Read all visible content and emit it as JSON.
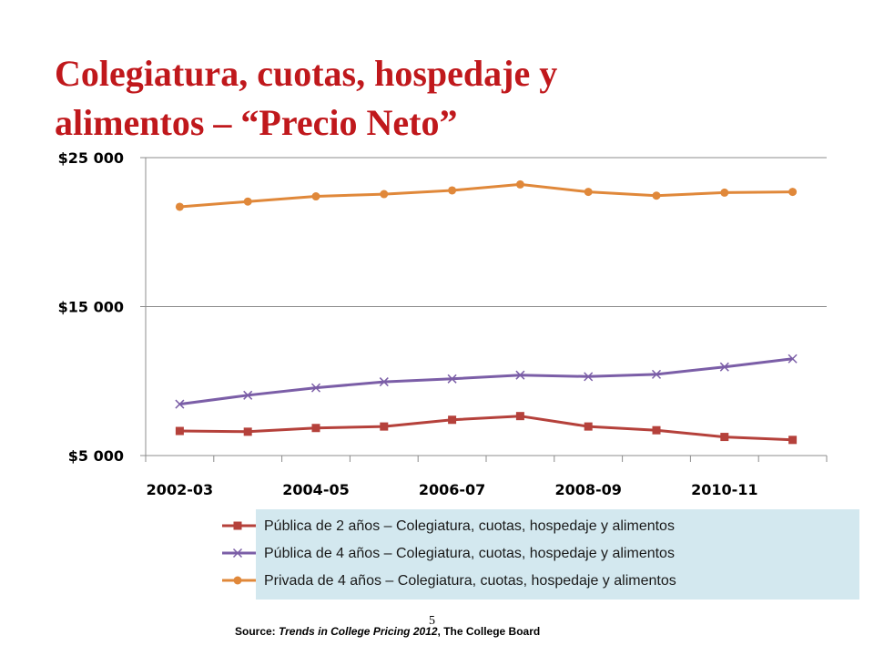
{
  "slide": {
    "title_line1": "Colegiatura, cuotas, hospedaje y",
    "title_line2": "alimentos  – “Precio Neto”",
    "page_number": "5",
    "source_prefix": "Source: ",
    "source_title": "Trends in College Pricing 2012",
    "source_suffix": ", The College Board"
  },
  "colors": {
    "title": "#c0181c",
    "legend_box": "#d3e8ef"
  },
  "chart_data": {
    "type": "line",
    "title": "",
    "xlabel": "",
    "ylabel": "",
    "x": [
      "2002-03",
      "2003-04",
      "2004-05",
      "2005-06",
      "2006-07",
      "2007-08",
      "2008-09",
      "2009-10",
      "2010-11",
      "2011-12"
    ],
    "x_tick_labels": [
      "2002-03",
      "2004-05",
      "2006-07",
      "2008-09",
      "2010-11"
    ],
    "ylim": [
      5000,
      25000
    ],
    "y_tick_values": [
      5000,
      15000,
      25000
    ],
    "y_tick_labels": [
      "$5 000",
      "$15 000",
      "$25 000"
    ],
    "grid": true,
    "legend_position": "bottom",
    "series": [
      {
        "name": "Pública de 2 años – Colegiatura, cuotas, hospedaje y alimentos",
        "color": "#b5413b",
        "marker": "square",
        "values": [
          6650,
          6600,
          6850,
          6950,
          7400,
          7650,
          6950,
          6700,
          6250,
          6050
        ]
      },
      {
        "name": "Pública de 4 años – Colegiatura, cuotas, hospedaje y alimentos",
        "color": "#7b5ea7",
        "marker": "x",
        "values": [
          8450,
          9050,
          9550,
          9950,
          10150,
          10400,
          10300,
          10450,
          10950,
          11500
        ]
      },
      {
        "name": "Privada de 4 años – Colegiatura, cuotas, hospedaje y alimentos",
        "color": "#e0883a",
        "marker": "circle",
        "values": [
          21700,
          22050,
          22400,
          22550,
          22800,
          23200,
          22700,
          22450,
          22650,
          22700
        ]
      }
    ]
  }
}
